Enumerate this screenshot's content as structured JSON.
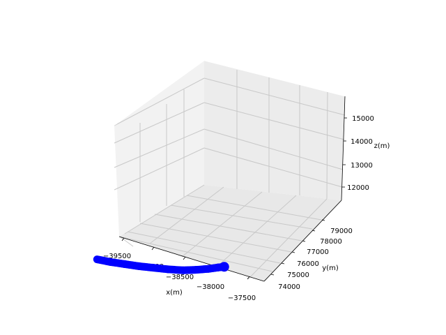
{
  "chart_data": {
    "type": "scatter",
    "projection": "3d",
    "title": "",
    "xlabel": "x(m)",
    "ylabel": "y(m)",
    "zlabel": "z(m)",
    "x_ticks": [
      "−39500",
      "−39000",
      "−38500",
      "−38000",
      "−37500"
    ],
    "y_ticks": [
      "74000",
      "75000",
      "76000",
      "77000",
      "78000",
      "79000"
    ],
    "z_ticks": [
      "12000",
      "13000",
      "14000",
      "15000"
    ],
    "grid": true,
    "series": [
      {
        "color": "#0000ff",
        "marker": "circle",
        "points_xyz": [
          [
            -39250,
            75050,
            12980
          ],
          [
            -39050,
            75150,
            12985
          ],
          [
            -38850,
            75300,
            12990
          ],
          [
            -38650,
            75450,
            12995
          ],
          [
            -38450,
            75650,
            13000
          ],
          [
            -38250,
            75850,
            13005
          ],
          [
            -38050,
            76100,
            13010
          ],
          [
            -37900,
            76400,
            13012
          ],
          [
            -37750,
            76750,
            13015
          ],
          [
            -37650,
            77050,
            13015
          ],
          [
            -37580,
            77250,
            13010
          ]
        ]
      }
    ]
  }
}
